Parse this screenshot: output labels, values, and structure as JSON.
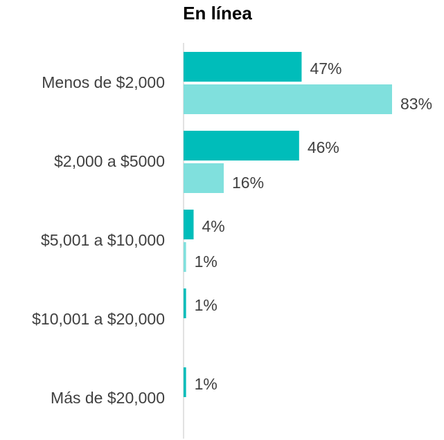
{
  "chart_data": {
    "type": "barh",
    "title": "En línea",
    "categories": [
      "Menos de $2,000",
      "$2,000 a $5000",
      "$5,001 a $10,000",
      "$10,001 a $20,000",
      "Más de $20,000"
    ],
    "series": [
      {
        "color": "#00bdba",
        "values": [
          47,
          46,
          4,
          1,
          1
        ],
        "value_labels": [
          "47%",
          "46%",
          "4%",
          "1%",
          "1%"
        ]
      },
      {
        "color": "#80e0dd",
        "values": [
          83,
          16,
          1,
          null,
          null
        ],
        "value_labels": [
          "83%",
          "16%",
          "1%",
          null,
          null
        ]
      }
    ]
  }
}
